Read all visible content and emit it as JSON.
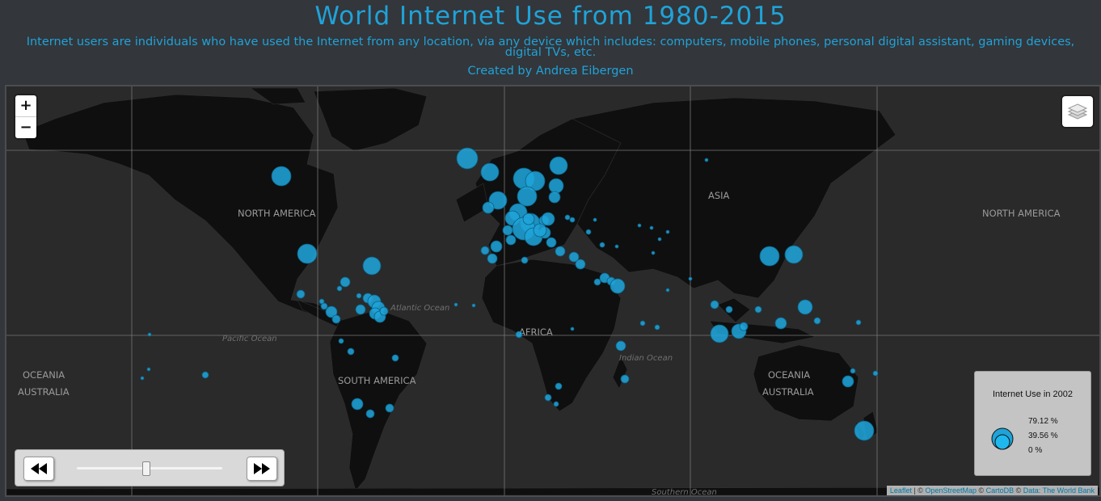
{
  "header": {
    "title": "World Internet Use from 1980-2015",
    "subtitle": "Internet users are individuals who have used the Internet from any location, via any device which includes: computers, mobile phones, personal digital assistant, gaming devices, digital TVs, etc.",
    "credit": "Created by Andrea Eibergen"
  },
  "map": {
    "labels": [
      {
        "text": "NORTH AMERICA",
        "kind": "continent"
      },
      {
        "text": "ASIA",
        "kind": "continent"
      },
      {
        "text": "NORTH AMERICA",
        "kind": "continent"
      },
      {
        "text": "AFRICA",
        "kind": "continent"
      },
      {
        "text": "SOUTH AMERICA",
        "kind": "continent"
      },
      {
        "text": "OCEANIA",
        "kind": "continent"
      },
      {
        "text": "AUSTRALIA",
        "kind": "continent"
      },
      {
        "text": "OCEANIA",
        "kind": "continent"
      },
      {
        "text": "AUSTRALIA",
        "kind": "continent"
      },
      {
        "text": "Atlantic Ocean",
        "kind": "ocean"
      },
      {
        "text": "Pacific Ocean",
        "kind": "ocean"
      },
      {
        "text": "Indian Ocean",
        "kind": "ocean"
      },
      {
        "text": "Southern Ocean",
        "kind": "ocean"
      }
    ],
    "marker_color": "#1fa3d8",
    "zoom_in_label": "+",
    "zoom_out_label": "−",
    "layers_icon": "layers-icon"
  },
  "legend": {
    "title": "Internet Use in 2002",
    "values": [
      "79.12 %",
      "39.56 %",
      "0 %"
    ]
  },
  "player": {
    "back_icon": "rewind-icon",
    "forward_icon": "fast-forward-icon",
    "slider_position": 0.6
  },
  "attribution": {
    "leaflet": "Leaflet",
    "sep1": " | © ",
    "osm": "OpenStreetMap",
    "sep2": " © ",
    "carto": "CartoDB",
    "sep3": " © ",
    "data": "Data: The World Bank"
  }
}
